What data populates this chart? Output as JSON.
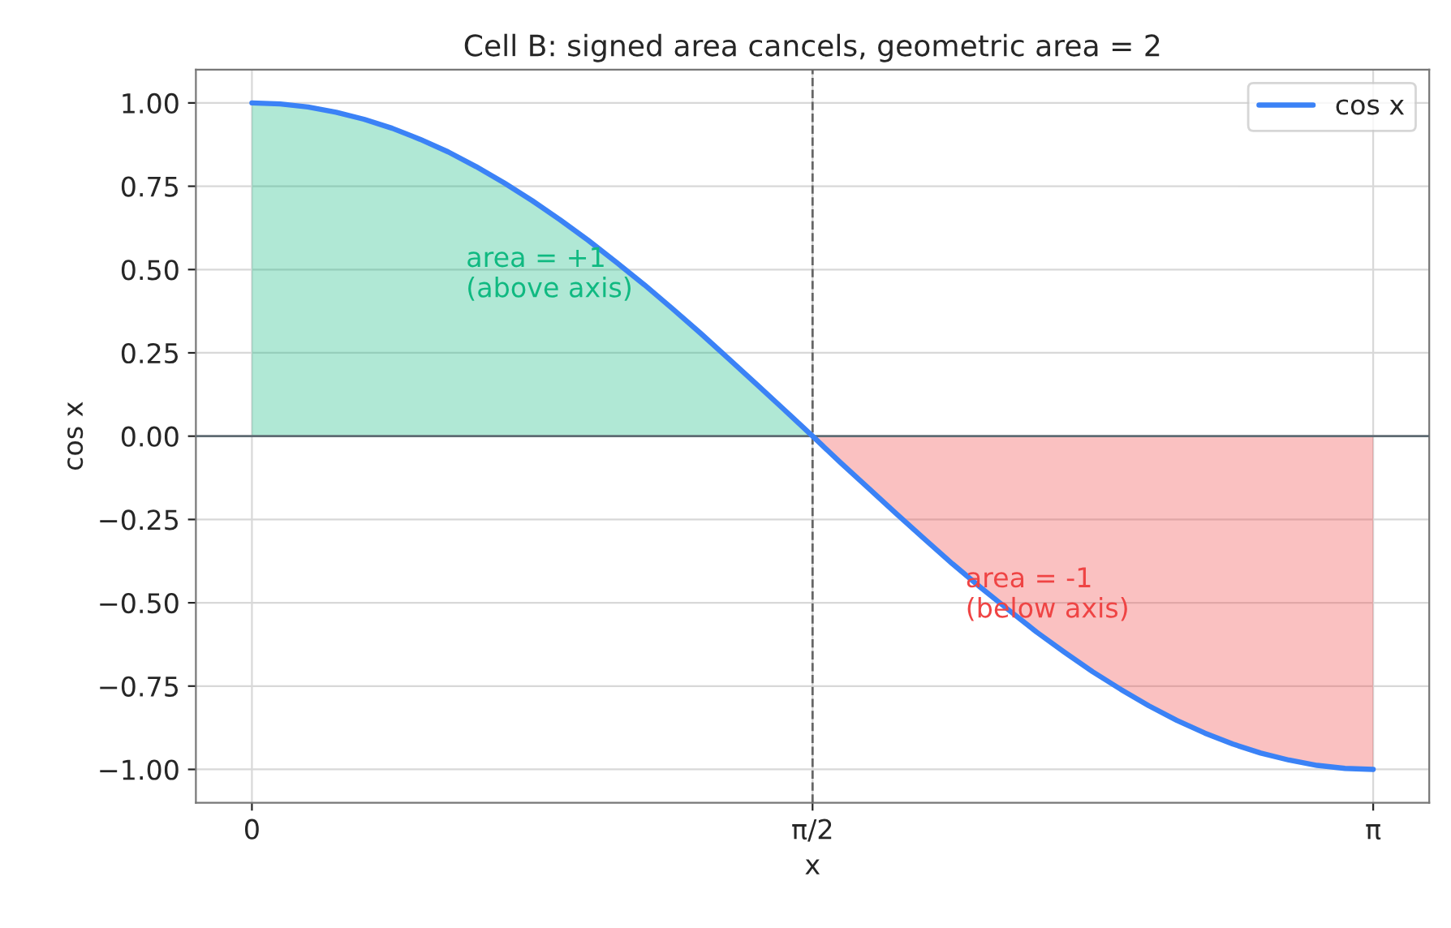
{
  "chart_data": {
    "type": "line",
    "title": "Cell B: signed area cancels, geometric area = 2",
    "xlabel": "x",
    "ylabel": "cos x",
    "series": [
      {
        "type": "area",
        "color": "#10b981",
        "x": [
          0,
          0.079,
          0.157,
          0.236,
          0.314,
          0.393,
          0.471,
          0.55,
          0.628,
          0.707,
          0.785,
          0.864,
          0.942,
          1.021,
          1.1,
          1.178,
          1.257,
          1.335,
          1.414,
          1.492,
          1.571
        ],
        "values": [
          1,
          0.997,
          0.988,
          0.972,
          0.951,
          0.924,
          0.891,
          0.853,
          0.809,
          0.76,
          0.707,
          0.649,
          0.588,
          0.522,
          0.454,
          0.383,
          0.309,
          0.233,
          0.156,
          0.079,
          0
        ]
      },
      {
        "type": "area",
        "color": "#ef4444",
        "x": [
          1.571,
          1.649,
          1.728,
          1.806,
          1.885,
          1.963,
          2.042,
          2.121,
          2.199,
          2.278,
          2.356,
          2.435,
          2.513,
          2.592,
          2.67,
          2.749,
          2.827,
          2.906,
          2.985,
          3.063,
          3.142
        ],
        "values": [
          0,
          -0.079,
          -0.156,
          -0.233,
          -0.309,
          -0.383,
          -0.454,
          -0.522,
          -0.588,
          -0.649,
          -0.707,
          -0.76,
          -0.809,
          -0.853,
          -0.891,
          -0.924,
          -0.951,
          -0.972,
          -0.988,
          -0.997,
          -1
        ]
      },
      {
        "name": "cos x",
        "color": "#3b82f6",
        "x": [
          0,
          0.079,
          0.157,
          0.236,
          0.314,
          0.393,
          0.471,
          0.55,
          0.628,
          0.707,
          0.785,
          0.864,
          0.942,
          1.021,
          1.1,
          1.178,
          1.257,
          1.335,
          1.414,
          1.492,
          1.571,
          1.649,
          1.728,
          1.806,
          1.885,
          1.963,
          2.042,
          2.121,
          2.199,
          2.278,
          2.356,
          2.435,
          2.513,
          2.592,
          2.67,
          2.749,
          2.827,
          2.906,
          2.985,
          3.063,
          3.142
        ],
        "values": [
          1,
          0.997,
          0.988,
          0.972,
          0.951,
          0.924,
          0.891,
          0.853,
          0.809,
          0.76,
          0.707,
          0.649,
          0.588,
          0.522,
          0.454,
          0.383,
          0.309,
          0.233,
          0.156,
          0.079,
          0,
          -0.079,
          -0.156,
          -0.233,
          -0.309,
          -0.383,
          -0.454,
          -0.522,
          -0.588,
          -0.649,
          -0.707,
          -0.76,
          -0.809,
          -0.853,
          -0.891,
          -0.924,
          -0.951,
          -0.972,
          -0.988,
          -0.997,
          -1
        ]
      }
    ],
    "annotations": [
      "area = +1\n(above axis)",
      "area = -1\n(below axis)"
    ],
    "ref_lines": [
      {
        "axis": "x",
        "value": 1.571,
        "color": "#666666",
        "line_style": "dashed"
      },
      {
        "axis": "y",
        "value": 0,
        "color": "#5f6b73",
        "line_style": "solid"
      }
    ],
    "xlim": [
      -0.157,
      3.299
    ],
    "ylim": [
      -1.1,
      1.1
    ],
    "xticks": [
      0,
      {
        "value": 1.571,
        "label": "π/2"
      },
      {
        "value": 3.142,
        "label": "π"
      }
    ],
    "yticks": [
      {
        "value": -1,
        "label": "−1.00"
      },
      {
        "value": -0.75,
        "label": "−0.75"
      },
      {
        "value": -0.5,
        "label": "−0.50"
      },
      {
        "value": -0.25,
        "label": "−0.25"
      },
      {
        "value": 0,
        "label": "0.00"
      },
      {
        "value": 0.25,
        "label": "0.25"
      },
      {
        "value": 0.5,
        "label": "0.50"
      },
      {
        "value": 0.75,
        "label": "0.75"
      },
      {
        "value": 1,
        "label": "1.00"
      }
    ],
    "grid": true,
    "legend": "top right"
  }
}
